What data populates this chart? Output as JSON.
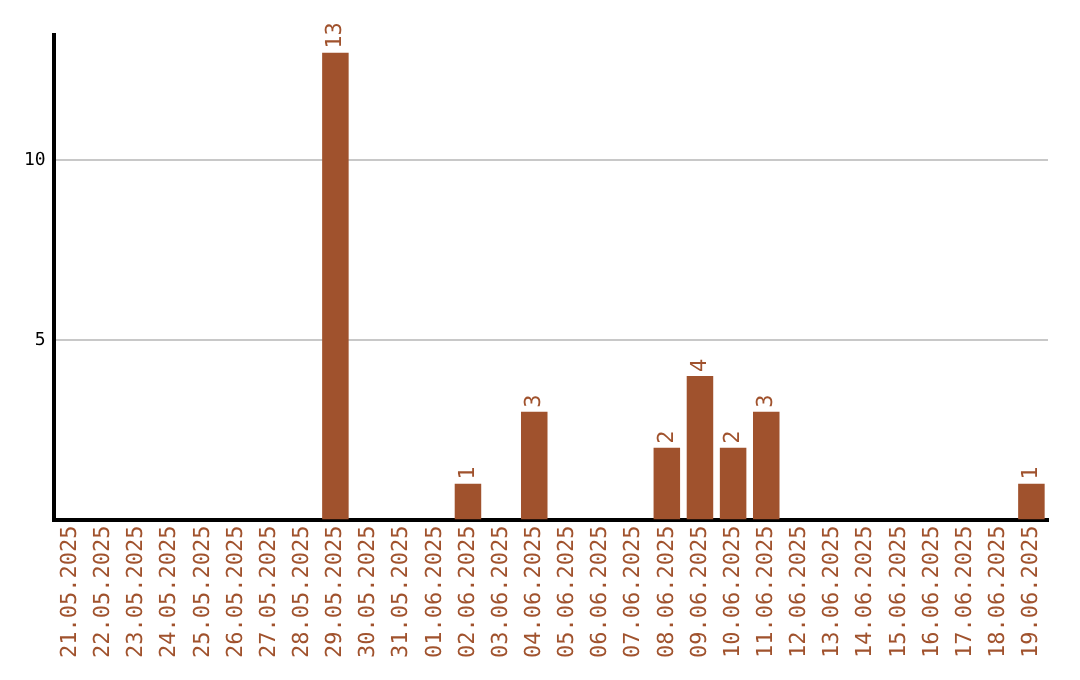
{
  "chart_data": {
    "type": "bar",
    "categories": [
      "21.05.2025",
      "22.05.2025",
      "23.05.2025",
      "24.05.2025",
      "25.05.2025",
      "26.05.2025",
      "27.05.2025",
      "28.05.2025",
      "29.05.2025",
      "30.05.2025",
      "31.05.2025",
      "01.06.2025",
      "02.06.2025",
      "03.06.2025",
      "04.06.2025",
      "05.06.2025",
      "06.06.2025",
      "07.06.2025",
      "08.06.2025",
      "09.06.2025",
      "10.06.2025",
      "11.06.2025",
      "12.06.2025",
      "13.06.2025",
      "14.06.2025",
      "15.06.2025",
      "16.06.2025",
      "17.06.2025",
      "18.06.2025",
      "19.06.2025"
    ],
    "values": [
      0,
      0,
      0,
      0,
      0,
      0,
      0,
      0,
      13,
      0,
      0,
      0,
      1,
      0,
      3,
      0,
      0,
      0,
      2,
      4,
      2,
      3,
      0,
      0,
      0,
      0,
      0,
      0,
      0,
      1
    ],
    "value_labels": [
      null,
      null,
      null,
      null,
      null,
      null,
      null,
      null,
      "13",
      null,
      null,
      null,
      "1",
      null,
      "3",
      null,
      null,
      null,
      "2",
      "4",
      "2",
      "3",
      null,
      null,
      null,
      null,
      null,
      null,
      null,
      "1"
    ],
    "color": "#a0522d",
    "ylim": [
      0,
      13.5
    ],
    "yticks": [
      5,
      10
    ],
    "grid": "y",
    "legend": false
  }
}
